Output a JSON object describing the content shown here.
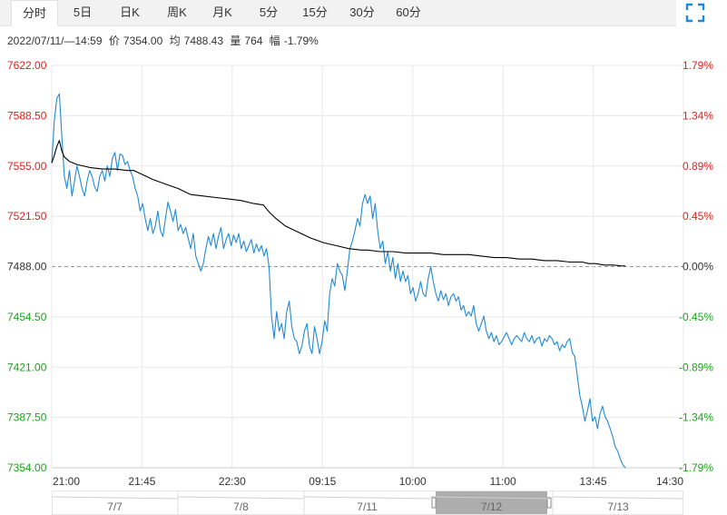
{
  "tabs": [
    {
      "label": "分时",
      "active": true
    },
    {
      "label": "5日"
    },
    {
      "label": "日K"
    },
    {
      "label": "周K"
    },
    {
      "label": "月K"
    },
    {
      "label": "5分"
    },
    {
      "label": "15分"
    },
    {
      "label": "30分"
    },
    {
      "label": "60分"
    }
  ],
  "fullscreen_icon": "fullscreen-icon",
  "info": {
    "datetime": "2022/07/11/—14:59",
    "price_label": "价",
    "price": "7354.00",
    "avg_label": "均",
    "avg": "7488.43",
    "vol_label": "量",
    "vol": "764",
    "chg_label": "幅",
    "chg": "-1.79%"
  },
  "colors": {
    "up": "#e0201c",
    "down": "#1ca21c",
    "price_line": "#1f8ad9",
    "avg_line": "#000000",
    "grid": "#e8e8e8",
    "ref_line": "#999999",
    "nav_selected": "#999999"
  },
  "chart_data": {
    "type": "line",
    "y_left_ticks": [
      "7622.00",
      "7588.50",
      "7555.00",
      "7521.50",
      "7488.00",
      "7454.50",
      "7421.00",
      "7387.50",
      "7354.00"
    ],
    "y_right_ticks": [
      "1.79%",
      "1.34%",
      "0.89%",
      "0.45%",
      "0.00%",
      "-0.45%",
      "-0.89%",
      "-1.34%",
      "-1.79%"
    ],
    "x_ticks": [
      "21:00",
      "21:45",
      "22:30",
      "09:15",
      "10:00",
      "11:00",
      "13:45",
      "14:30"
    ],
    "ylim": [
      7354,
      7622
    ],
    "reference_value": 7488,
    "x_session_range": [
      0,
      100
    ],
    "series": [
      {
        "key": "price",
        "points": [
          [
            0,
            7557
          ],
          [
            0.4,
            7585
          ],
          [
            0.8,
            7600
          ],
          [
            1.2,
            7603
          ],
          [
            1.6,
            7575
          ],
          [
            2.0,
            7548
          ],
          [
            2.4,
            7540
          ],
          [
            2.8,
            7552
          ],
          [
            3.2,
            7535
          ],
          [
            3.6,
            7545
          ],
          [
            4.0,
            7555
          ],
          [
            4.4,
            7548
          ],
          [
            4.8,
            7540
          ],
          [
            5.2,
            7535
          ],
          [
            5.6,
            7545
          ],
          [
            6.0,
            7552
          ],
          [
            6.4,
            7548
          ],
          [
            6.8,
            7541
          ],
          [
            7.2,
            7538
          ],
          [
            7.6,
            7548
          ],
          [
            8.0,
            7552
          ],
          [
            8.4,
            7545
          ],
          [
            8.8,
            7555
          ],
          [
            9.2,
            7548
          ],
          [
            9.6,
            7560
          ],
          [
            10.0,
            7564
          ],
          [
            10.4,
            7552
          ],
          [
            10.8,
            7563
          ],
          [
            11.2,
            7562
          ],
          [
            11.6,
            7556
          ],
          [
            12.0,
            7558
          ],
          [
            12.4,
            7552
          ],
          [
            12.8,
            7548
          ],
          [
            13.2,
            7540
          ],
          [
            13.6,
            7535
          ],
          [
            14.0,
            7525
          ],
          [
            14.4,
            7530
          ],
          [
            14.8,
            7520
          ],
          [
            15.2,
            7512
          ],
          [
            15.6,
            7520
          ],
          [
            16.0,
            7510
          ],
          [
            16.4,
            7515
          ],
          [
            16.8,
            7525
          ],
          [
            17.2,
            7512
          ],
          [
            17.6,
            7508
          ],
          [
            18.0,
            7520
          ],
          [
            18.4,
            7531
          ],
          [
            18.8,
            7525
          ],
          [
            19.2,
            7518
          ],
          [
            19.6,
            7526
          ],
          [
            20.0,
            7512
          ],
          [
            20.4,
            7516
          ],
          [
            20.8,
            7510
          ],
          [
            21.2,
            7514
          ],
          [
            21.6,
            7507
          ],
          [
            22.0,
            7500
          ],
          [
            22.4,
            7510
          ],
          [
            22.8,
            7495
          ],
          [
            23.2,
            7490
          ],
          [
            23.6,
            7485
          ],
          [
            24.0,
            7490
          ],
          [
            24.4,
            7500
          ],
          [
            24.8,
            7508
          ],
          [
            25.2,
            7502
          ],
          [
            25.6,
            7510
          ],
          [
            26.0,
            7500
          ],
          [
            26.4,
            7508
          ],
          [
            26.8,
            7514
          ],
          [
            27.2,
            7500
          ],
          [
            27.6,
            7506
          ],
          [
            28.0,
            7510
          ],
          [
            28.4,
            7502
          ],
          [
            28.8,
            7509
          ],
          [
            29.2,
            7504
          ],
          [
            29.6,
            7510
          ],
          [
            30.0,
            7500
          ],
          [
            30.4,
            7505
          ],
          [
            30.8,
            7498
          ],
          [
            31.2,
            7502
          ],
          [
            31.6,
            7506
          ],
          [
            32.0,
            7497
          ],
          [
            32.4,
            7503
          ],
          [
            32.8,
            7498
          ],
          [
            33.2,
            7502
          ],
          [
            33.6,
            7495
          ],
          [
            34.0,
            7500
          ],
          [
            34.4,
            7488
          ],
          [
            34.8,
            7455
          ],
          [
            35.2,
            7440
          ],
          [
            35.6,
            7458
          ],
          [
            36.0,
            7445
          ],
          [
            36.4,
            7450
          ],
          [
            36.8,
            7440
          ],
          [
            37.2,
            7458
          ],
          [
            37.6,
            7465
          ],
          [
            38.0,
            7448
          ],
          [
            38.4,
            7440
          ],
          [
            38.8,
            7438
          ],
          [
            39.2,
            7430
          ],
          [
            39.6,
            7435
          ],
          [
            40.0,
            7445
          ],
          [
            40.4,
            7450
          ],
          [
            40.8,
            7435
          ],
          [
            41.2,
            7430
          ],
          [
            41.6,
            7448
          ],
          [
            42.0,
            7440
          ],
          [
            42.4,
            7430
          ],
          [
            42.8,
            7438
          ],
          [
            43.2,
            7452
          ],
          [
            43.6,
            7445
          ],
          [
            44.0,
            7470
          ],
          [
            44.4,
            7480
          ],
          [
            44.8,
            7475
          ],
          [
            45.2,
            7490
          ],
          [
            45.6,
            7485
          ],
          [
            46.0,
            7482
          ],
          [
            46.4,
            7472
          ],
          [
            46.8,
            7485
          ],
          [
            47.2,
            7500
          ],
          [
            47.6,
            7505
          ],
          [
            48.0,
            7512
          ],
          [
            48.4,
            7520
          ],
          [
            48.8,
            7515
          ],
          [
            49.2,
            7530
          ],
          [
            49.6,
            7536
          ],
          [
            50.0,
            7530
          ],
          [
            50.4,
            7535
          ],
          [
            50.8,
            7520
          ],
          [
            51.2,
            7530
          ],
          [
            51.6,
            7512
          ],
          [
            52.0,
            7500
          ],
          [
            52.4,
            7505
          ],
          [
            52.8,
            7490
          ],
          [
            53.2,
            7498
          ],
          [
            53.6,
            7485
          ],
          [
            54.0,
            7494
          ],
          [
            54.4,
            7480
          ],
          [
            54.8,
            7490
          ],
          [
            55.2,
            7478
          ],
          [
            55.6,
            7485
          ],
          [
            56.0,
            7478
          ],
          [
            56.4,
            7482
          ],
          [
            56.8,
            7470
          ],
          [
            57.2,
            7474
          ],
          [
            57.6,
            7465
          ],
          [
            58.0,
            7470
          ],
          [
            58.4,
            7478
          ],
          [
            58.8,
            7470
          ],
          [
            59.2,
            7468
          ],
          [
            59.6,
            7480
          ],
          [
            60.0,
            7488
          ],
          [
            60.4,
            7478
          ],
          [
            60.8,
            7470
          ],
          [
            61.2,
            7465
          ],
          [
            61.6,
            7472
          ],
          [
            62.0,
            7466
          ],
          [
            62.4,
            7470
          ],
          [
            62.8,
            7462
          ],
          [
            63.2,
            7468
          ],
          [
            63.6,
            7470
          ],
          [
            64.0,
            7465
          ],
          [
            64.4,
            7468
          ],
          [
            64.8,
            7459
          ],
          [
            65.2,
            7462
          ],
          [
            65.6,
            7455
          ],
          [
            66.0,
            7458
          ],
          [
            66.4,
            7455
          ],
          [
            66.8,
            7462
          ],
          [
            67.2,
            7450
          ],
          [
            67.6,
            7445
          ],
          [
            68.0,
            7450
          ],
          [
            68.4,
            7455
          ],
          [
            68.8,
            7445
          ],
          [
            69.2,
            7440
          ],
          [
            69.6,
            7444
          ],
          [
            70.0,
            7438
          ],
          [
            70.4,
            7442
          ],
          [
            70.8,
            7436
          ],
          [
            71.2,
            7438
          ],
          [
            71.6,
            7441
          ],
          [
            72.0,
            7444
          ],
          [
            72.4,
            7440
          ],
          [
            72.8,
            7436
          ],
          [
            73.2,
            7440
          ],
          [
            73.6,
            7442
          ],
          [
            74.0,
            7440
          ],
          [
            74.4,
            7438
          ],
          [
            74.8,
            7444
          ],
          [
            75.2,
            7440
          ],
          [
            75.6,
            7438
          ],
          [
            76.0,
            7442
          ],
          [
            76.4,
            7437
          ],
          [
            76.8,
            7440
          ],
          [
            77.2,
            7441
          ],
          [
            77.6,
            7435
          ],
          [
            78.0,
            7440
          ],
          [
            78.4,
            7438
          ],
          [
            78.8,
            7442
          ],
          [
            79.2,
            7440
          ],
          [
            79.6,
            7436
          ],
          [
            80.0,
            7438
          ],
          [
            80.4,
            7432
          ],
          [
            80.8,
            7436
          ],
          [
            81.2,
            7434
          ],
          [
            81.6,
            7438
          ],
          [
            82.0,
            7440
          ],
          [
            82.4,
            7431
          ],
          [
            82.8,
            7428
          ],
          [
            83.2,
            7415
          ],
          [
            83.6,
            7402
          ],
          [
            84.0,
            7395
          ],
          [
            84.4,
            7385
          ],
          [
            84.8,
            7392
          ],
          [
            85.2,
            7400
          ],
          [
            85.6,
            7385
          ],
          [
            86.0,
            7388
          ],
          [
            86.4,
            7380
          ],
          [
            86.8,
            7390
          ],
          [
            87.2,
            7395
          ],
          [
            87.6,
            7388
          ],
          [
            88.0,
            7385
          ],
          [
            88.4,
            7380
          ],
          [
            88.8,
            7375
          ],
          [
            89.2,
            7368
          ],
          [
            89.6,
            7365
          ],
          [
            90.0,
            7360
          ],
          [
            90.4,
            7356
          ],
          [
            90.8,
            7354
          ]
        ]
      },
      {
        "key": "avg",
        "points": [
          [
            0,
            7557
          ],
          [
            0.4,
            7562
          ],
          [
            0.8,
            7568
          ],
          [
            1.2,
            7572
          ],
          [
            1.6,
            7565
          ],
          [
            2.0,
            7561
          ],
          [
            2.8,
            7558
          ],
          [
            4.0,
            7556
          ],
          [
            6.0,
            7554
          ],
          [
            8.0,
            7553
          ],
          [
            10.0,
            7553
          ],
          [
            12.0,
            7552
          ],
          [
            13.0,
            7552
          ],
          [
            14.0,
            7550
          ],
          [
            16.0,
            7546
          ],
          [
            18.0,
            7543
          ],
          [
            20.0,
            7540
          ],
          [
            22.0,
            7536
          ],
          [
            24.0,
            7535
          ],
          [
            26.0,
            7534
          ],
          [
            28.0,
            7533
          ],
          [
            30.0,
            7532
          ],
          [
            32.0,
            7530
          ],
          [
            33.5,
            7529
          ],
          [
            34.5,
            7524
          ],
          [
            35.5,
            7520
          ],
          [
            37.0,
            7515
          ],
          [
            39.0,
            7511
          ],
          [
            41.0,
            7507
          ],
          [
            43.0,
            7504
          ],
          [
            45.0,
            7502
          ],
          [
            47.0,
            7500
          ],
          [
            49.0,
            7499
          ],
          [
            50.0,
            7499
          ],
          [
            52.0,
            7498
          ],
          [
            54.0,
            7498
          ],
          [
            56.0,
            7497
          ],
          [
            58.0,
            7497
          ],
          [
            60.0,
            7497
          ],
          [
            62.0,
            7496
          ],
          [
            64.0,
            7496
          ],
          [
            66.0,
            7496
          ],
          [
            68.0,
            7495
          ],
          [
            70.0,
            7494
          ],
          [
            72.0,
            7494
          ],
          [
            74.0,
            7493
          ],
          [
            76.0,
            7493
          ],
          [
            78.0,
            7492
          ],
          [
            80.0,
            7492
          ],
          [
            82.0,
            7491
          ],
          [
            84.0,
            7491
          ],
          [
            85.0,
            7490
          ],
          [
            86.0,
            7490
          ],
          [
            87.5,
            7489
          ],
          [
            89.0,
            7489
          ],
          [
            90.0,
            7488.5
          ],
          [
            90.8,
            7488.43
          ]
        ]
      }
    ],
    "navigator": {
      "labels": [
        "7/7",
        "7/8",
        "7/11",
        "7/12",
        "7/13"
      ],
      "selected": "7/12"
    }
  }
}
